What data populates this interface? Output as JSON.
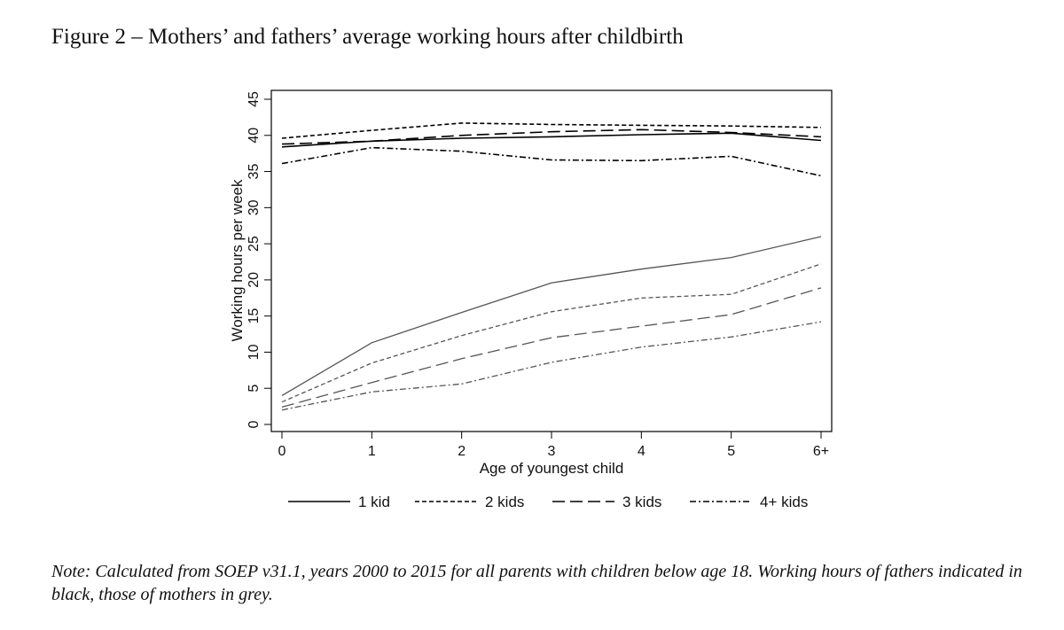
{
  "figure": {
    "title": "Figure 2 – Mothers’ and fathers’ average working hours after childbirth",
    "note": "Note: Calculated from SOEP v31.1, years 2000 to 2015 for all parents with children below age 18. Working hours of fathers indicated in black, those of mothers in grey."
  },
  "chart_data": {
    "type": "line",
    "title": "",
    "xlabel": "Age of youngest child",
    "ylabel": "Working hours per week",
    "categories": [
      "0",
      "1",
      "2",
      "3",
      "4",
      "5",
      "6+"
    ],
    "ylim": [
      0,
      45
    ],
    "yticks": [
      0,
      5,
      10,
      15,
      20,
      25,
      30,
      35,
      40,
      45
    ],
    "grid": false,
    "legend_position": "bottom",
    "legend": [
      "1 kid",
      "2 kids",
      "3 kids",
      "4+ kids"
    ],
    "colors": {
      "fathers": "#000000",
      "mothers": "#555555"
    },
    "series": [
      {
        "group": "fathers",
        "legend_index": 0,
        "dash": "solid",
        "values": [
          38.4,
          39.2,
          39.6,
          39.8,
          40.1,
          40.3,
          39.3
        ]
      },
      {
        "group": "fathers",
        "legend_index": 1,
        "dash": "short",
        "values": [
          39.6,
          40.7,
          41.7,
          41.5,
          41.4,
          41.3,
          41.1
        ]
      },
      {
        "group": "fathers",
        "legend_index": 2,
        "dash": "long",
        "values": [
          38.8,
          39.2,
          40.0,
          40.5,
          40.8,
          40.4,
          39.8
        ]
      },
      {
        "group": "fathers",
        "legend_index": 3,
        "dash": "dashdot",
        "values": [
          36.1,
          38.3,
          37.8,
          36.6,
          36.5,
          37.1,
          34.4
        ]
      },
      {
        "group": "mothers",
        "legend_index": 0,
        "dash": "solid",
        "values": [
          4.0,
          11.3,
          15.5,
          19.6,
          21.5,
          23.1,
          26.0
        ]
      },
      {
        "group": "mothers",
        "legend_index": 1,
        "dash": "short",
        "values": [
          3.1,
          8.5,
          12.3,
          15.6,
          17.5,
          18.0,
          22.2
        ]
      },
      {
        "group": "mothers",
        "legend_index": 2,
        "dash": "long",
        "values": [
          2.4,
          5.8,
          9.1,
          12.0,
          13.6,
          15.2,
          18.9
        ]
      },
      {
        "group": "mothers",
        "legend_index": 3,
        "dash": "dashdot",
        "values": [
          2.0,
          4.5,
          5.6,
          8.6,
          10.7,
          12.1,
          14.2
        ]
      }
    ]
  }
}
